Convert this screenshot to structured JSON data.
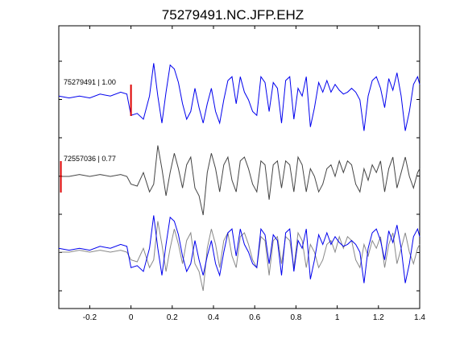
{
  "chart_data": {
    "type": "line",
    "title": "75279491.NC.JFP.EHZ",
    "xlabel": "",
    "ylabel": "",
    "xlim": [
      -0.35,
      1.4
    ],
    "xticks": [
      -0.2,
      0,
      0.2,
      0.4,
      0.6,
      0.8,
      1,
      1.2,
      1.4
    ],
    "xtick_labels": [
      "-0.2",
      "0",
      "0.2",
      "0.4",
      "0.6",
      "0.8",
      "1",
      "1.2",
      "1.4"
    ],
    "yticks_count": 7,
    "grid": false,
    "legend": "none",
    "colors": {
      "primary": "#0000ee",
      "secondary": "#444444",
      "overlay": "#888888",
      "pick": "#dd0000"
    },
    "traces": [
      {
        "label": "75279491 | 1.00",
        "color": "#0000ee",
        "pick_time": 0.0,
        "x": [
          -0.35,
          -0.3,
          -0.25,
          -0.2,
          -0.15,
          -0.1,
          -0.05,
          -0.02,
          0.0,
          0.03,
          0.06,
          0.09,
          0.11,
          0.13,
          0.15,
          0.17,
          0.19,
          0.21,
          0.23,
          0.25,
          0.27,
          0.29,
          0.31,
          0.33,
          0.35,
          0.37,
          0.39,
          0.41,
          0.43,
          0.45,
          0.47,
          0.49,
          0.51,
          0.53,
          0.55,
          0.57,
          0.59,
          0.61,
          0.63,
          0.65,
          0.67,
          0.69,
          0.71,
          0.73,
          0.75,
          0.77,
          0.79,
          0.81,
          0.83,
          0.85,
          0.87,
          0.89,
          0.91,
          0.93,
          0.95,
          0.97,
          0.99,
          1.01,
          1.03,
          1.05,
          1.07,
          1.09,
          1.11,
          1.13,
          1.15,
          1.17,
          1.19,
          1.21,
          1.23,
          1.25,
          1.27,
          1.29,
          1.31,
          1.33,
          1.35,
          1.37,
          1.39,
          1.4
        ],
        "y": [
          0.1,
          0.05,
          0.1,
          0.05,
          0.15,
          0.1,
          0.2,
          0.15,
          -0.4,
          -0.35,
          -0.5,
          0.1,
          0.95,
          0.1,
          -0.6,
          0.2,
          0.9,
          0.8,
          0.45,
          -0.1,
          -0.5,
          -0.3,
          0.3,
          -0.2,
          -0.6,
          -0.1,
          0.3,
          -0.3,
          -0.6,
          0.0,
          0.5,
          0.6,
          -0.1,
          0.6,
          0.2,
          0.0,
          -0.3,
          -0.4,
          0.6,
          0.45,
          -0.3,
          0.45,
          0.3,
          -0.6,
          0.5,
          0.6,
          -0.5,
          0.3,
          0.1,
          0.6,
          -0.7,
          -0.2,
          0.45,
          0.2,
          0.5,
          0.2,
          0.4,
          0.25,
          0.15,
          0.2,
          0.3,
          0.2,
          0.0,
          -0.8,
          0.1,
          0.5,
          0.6,
          0.3,
          -0.2,
          0.55,
          0.25,
          0.7,
          0.1,
          -0.8,
          -0.3,
          0.4,
          0.6,
          0.4
        ]
      },
      {
        "label": "72557036 | 0.77",
        "color": "#444444",
        "pick_time": -0.34,
        "x": [
          -0.35,
          -0.3,
          -0.25,
          -0.2,
          -0.15,
          -0.1,
          -0.05,
          -0.02,
          0.0,
          0.03,
          0.06,
          0.09,
          0.11,
          0.13,
          0.15,
          0.17,
          0.19,
          0.21,
          0.23,
          0.25,
          0.27,
          0.29,
          0.31,
          0.33,
          0.35,
          0.37,
          0.39,
          0.41,
          0.43,
          0.45,
          0.47,
          0.49,
          0.51,
          0.53,
          0.55,
          0.57,
          0.59,
          0.61,
          0.63,
          0.65,
          0.67,
          0.69,
          0.71,
          0.73,
          0.75,
          0.77,
          0.79,
          0.81,
          0.83,
          0.85,
          0.87,
          0.89,
          0.91,
          0.93,
          0.95,
          0.97,
          0.99,
          1.01,
          1.03,
          1.05,
          1.07,
          1.09,
          1.11,
          1.13,
          1.15,
          1.17,
          1.19,
          1.21,
          1.23,
          1.25,
          1.27,
          1.29,
          1.31,
          1.33,
          1.35,
          1.37,
          1.39,
          1.4
        ],
        "y": [
          0.0,
          0.0,
          0.05,
          0.0,
          0.05,
          0.0,
          0.05,
          0.0,
          -0.2,
          -0.25,
          0.1,
          -0.4,
          -0.2,
          0.8,
          0.2,
          -0.5,
          0.1,
          0.6,
          0.2,
          -0.3,
          0.3,
          0.5,
          -0.3,
          -0.5,
          -1.0,
          0.1,
          0.6,
          0.2,
          -0.4,
          0.3,
          0.5,
          -0.1,
          -0.4,
          0.4,
          0.5,
          0.2,
          -0.2,
          -0.4,
          0.4,
          0.3,
          -0.6,
          0.3,
          0.4,
          -0.3,
          0.4,
          0.3,
          -0.4,
          0.5,
          0.3,
          -0.4,
          0.2,
          0.0,
          -0.4,
          -0.2,
          0.2,
          0.3,
          0.0,
          0.4,
          0.1,
          0.4,
          0.3,
          -0.2,
          -0.4,
          0.2,
          -0.1,
          0.3,
          0.1,
          0.4,
          -0.4,
          0.2,
          0.5,
          -0.3,
          0.1,
          0.5,
          0.0,
          -0.3,
          0.1,
          0.2
        ]
      },
      {
        "label": "",
        "color": "#0000ee",
        "overlay_color": "#888888",
        "pick_time": null,
        "x": [
          -0.35,
          -0.3,
          -0.25,
          -0.2,
          -0.15,
          -0.1,
          -0.05,
          -0.02,
          0.0,
          0.03,
          0.06,
          0.09,
          0.11,
          0.13,
          0.15,
          0.17,
          0.19,
          0.21,
          0.23,
          0.25,
          0.27,
          0.29,
          0.31,
          0.33,
          0.35,
          0.37,
          0.39,
          0.41,
          0.43,
          0.45,
          0.47,
          0.49,
          0.51,
          0.53,
          0.55,
          0.57,
          0.59,
          0.61,
          0.63,
          0.65,
          0.67,
          0.69,
          0.71,
          0.73,
          0.75,
          0.77,
          0.79,
          0.81,
          0.83,
          0.85,
          0.87,
          0.89,
          0.91,
          0.93,
          0.95,
          0.97,
          0.99,
          1.01,
          1.03,
          1.05,
          1.07,
          1.09,
          1.11,
          1.13,
          1.15,
          1.17,
          1.19,
          1.21,
          1.23,
          1.25,
          1.27,
          1.29,
          1.31,
          1.33,
          1.35,
          1.37,
          1.39,
          1.4
        ],
        "y": [
          0.1,
          0.05,
          0.1,
          0.05,
          0.15,
          0.1,
          0.2,
          0.15,
          -0.4,
          -0.35,
          -0.5,
          0.1,
          0.95,
          0.1,
          -0.6,
          0.2,
          0.9,
          0.8,
          0.45,
          -0.1,
          -0.5,
          -0.3,
          0.3,
          -0.2,
          -0.6,
          -0.1,
          0.3,
          -0.3,
          -0.6,
          0.0,
          0.5,
          0.6,
          -0.1,
          0.6,
          0.2,
          0.0,
          -0.3,
          -0.4,
          0.6,
          0.45,
          -0.3,
          0.45,
          0.3,
          -0.6,
          0.5,
          0.6,
          -0.5,
          0.3,
          0.1,
          0.6,
          -0.7,
          -0.2,
          0.45,
          0.2,
          0.5,
          0.2,
          0.4,
          0.25,
          0.15,
          0.2,
          0.3,
          0.2,
          0.0,
          -0.8,
          0.1,
          0.5,
          0.6,
          0.3,
          -0.2,
          0.55,
          0.25,
          0.7,
          0.1,
          -0.8,
          -0.3,
          0.4,
          0.6,
          0.4
        ],
        "overlay_y": [
          0.0,
          0.0,
          0.05,
          0.0,
          0.05,
          0.0,
          0.05,
          0.0,
          -0.2,
          -0.25,
          0.1,
          -0.4,
          -0.2,
          0.8,
          0.2,
          -0.5,
          0.1,
          0.6,
          0.2,
          -0.3,
          0.3,
          0.5,
          -0.3,
          -0.5,
          -1.0,
          0.1,
          0.6,
          0.2,
          -0.4,
          0.3,
          0.5,
          -0.1,
          -0.4,
          0.4,
          0.5,
          0.2,
          -0.2,
          -0.4,
          0.4,
          0.3,
          -0.6,
          0.3,
          0.4,
          -0.3,
          0.4,
          0.3,
          -0.4,
          0.5,
          0.3,
          -0.4,
          0.2,
          0.0,
          -0.4,
          -0.2,
          0.2,
          0.3,
          0.0,
          0.4,
          0.1,
          0.4,
          0.3,
          -0.2,
          -0.4,
          0.2,
          -0.1,
          0.3,
          0.1,
          0.4,
          -0.4,
          0.2,
          0.5,
          -0.3,
          0.1,
          0.5,
          0.0,
          -0.3,
          0.1,
          0.2
        ]
      }
    ]
  }
}
